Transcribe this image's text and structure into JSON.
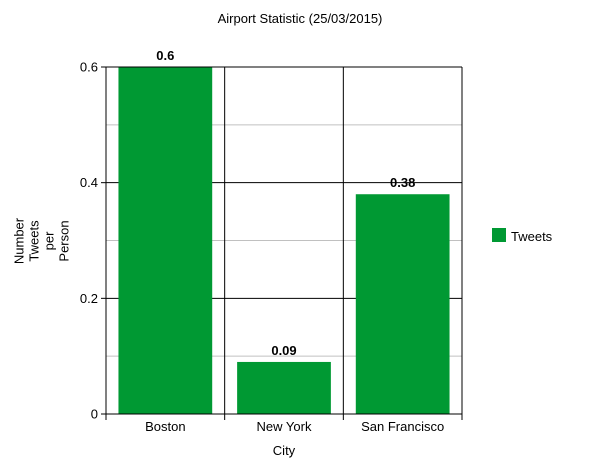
{
  "chart_data": {
    "type": "bar",
    "title": "Airport Statistic (25/03/2015)",
    "xlabel": "City",
    "ylabel_lines": [
      "Number",
      "Tweets",
      "per",
      "Person"
    ],
    "categories": [
      "Boston",
      "New York",
      "San Francisco"
    ],
    "series": [
      {
        "name": "Tweets",
        "values": [
          0.6,
          0.09,
          0.38
        ],
        "labels": [
          "0.6",
          "0.09",
          "0.38"
        ],
        "color": "#009933"
      }
    ],
    "ylim": [
      0,
      0.6
    ],
    "yticks": [
      {
        "value": 0,
        "label": "0"
      },
      {
        "value": 0.2,
        "label": "0.2"
      },
      {
        "value": 0.4,
        "label": "0.4"
      },
      {
        "value": 0.6,
        "label": "0.6"
      }
    ],
    "minor_gridlines": [
      0.1,
      0.3,
      0.5
    ],
    "grid": true,
    "legend_position": "right"
  }
}
